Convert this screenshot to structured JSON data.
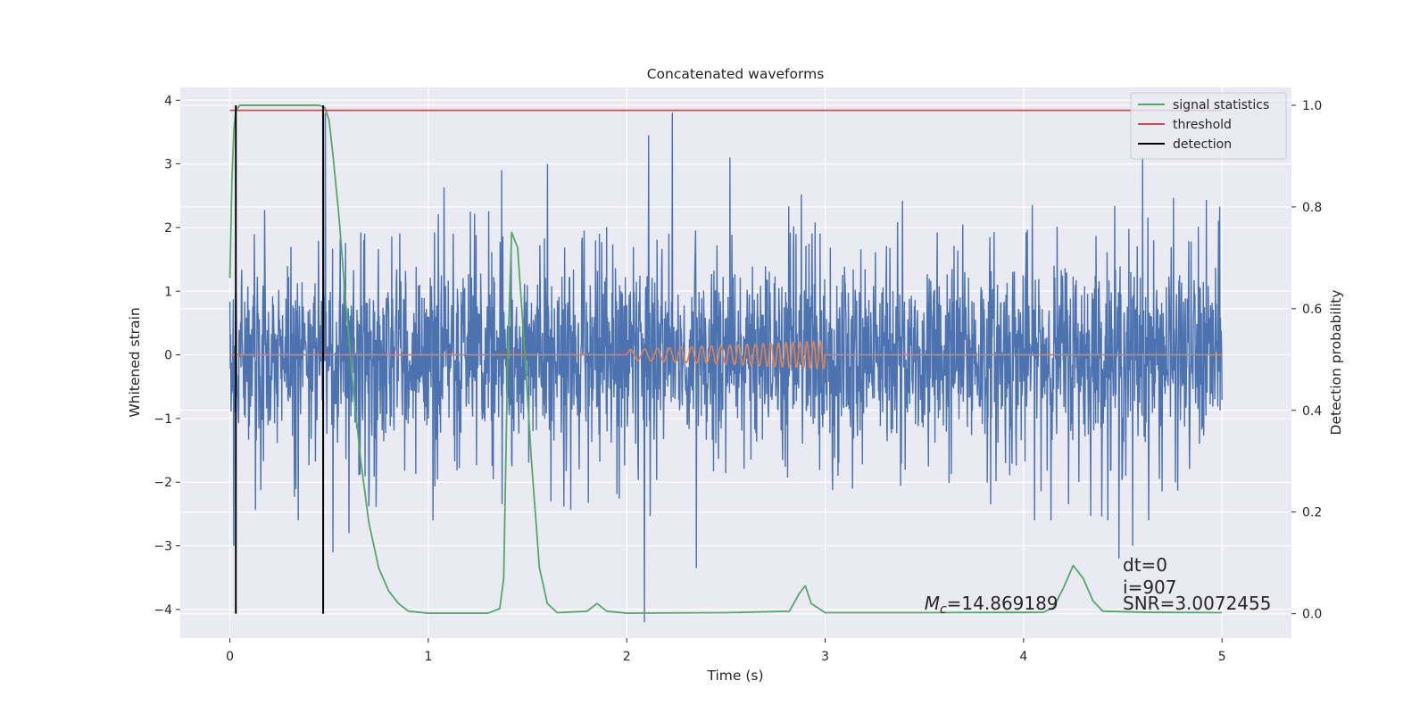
{
  "chart_data": {
    "type": "line",
    "title": "Concatenated waveforms",
    "xlabel": "Time (s)",
    "ylabel": "Whitened strain",
    "y2label": "Detection probability",
    "xlim": [
      -0.25,
      5.35
    ],
    "ylim": [
      -4.45,
      4.2
    ],
    "y2lim": [
      -0.048,
      1.035
    ],
    "xticks": [
      0,
      1,
      2,
      3,
      4,
      5
    ],
    "xtick_labels": [
      "0",
      "1",
      "2",
      "3",
      "4",
      "5"
    ],
    "yticks": [
      -4,
      -3,
      -2,
      -1,
      0,
      1,
      2,
      3,
      4
    ],
    "ytick_labels": [
      "−4",
      "−3",
      "−2",
      "−1",
      "0",
      "1",
      "2",
      "3",
      "4"
    ],
    "y2ticks": [
      0.0,
      0.2,
      0.4,
      0.6,
      0.8,
      1.0
    ],
    "y2tick_labels": [
      "0.0",
      "0.2",
      "0.4",
      "0.6",
      "0.8",
      "1.0"
    ],
    "grid": true,
    "legend_position": "top-right",
    "noise": {
      "color": "#4c72b0",
      "x_range": [
        0,
        5
      ],
      "typical_amplitude": 1.5,
      "peaks": [
        {
          "x": 0.02,
          "y": -3.0
        },
        {
          "x": 0.48,
          "y": 3.8
        },
        {
          "x": 0.52,
          "y": -3.1
        },
        {
          "x": 0.6,
          "y": -2.8
        },
        {
          "x": 1.37,
          "y": 2.9
        },
        {
          "x": 1.6,
          "y": 3.0
        },
        {
          "x": 2.09,
          "y": -4.2
        },
        {
          "x": 2.11,
          "y": 3.45
        },
        {
          "x": 2.23,
          "y": 3.8
        },
        {
          "x": 2.35,
          "y": -3.35
        },
        {
          "x": 2.52,
          "y": 3.1
        },
        {
          "x": 4.48,
          "y": -3.2
        },
        {
          "x": 4.55,
          "y": -3.0
        },
        {
          "x": 4.6,
          "y": 3.1
        }
      ]
    },
    "injected_signal": {
      "color": "#dd8452",
      "x_range": [
        2,
        3
      ],
      "amplitude_start": 0.08,
      "amplitude_end": 0.22,
      "cycles": 22
    },
    "series": [
      {
        "name": "signal statistics",
        "axis": "right",
        "color": "#55a868",
        "x": [
          0,
          0.01,
          0.02,
          0.03,
          0.05,
          0.1,
          0.2,
          0.45,
          0.48,
          0.5,
          0.52,
          0.55,
          0.58,
          0.62,
          0.66,
          0.7,
          0.75,
          0.8,
          0.85,
          0.9,
          1.0,
          1.3,
          1.36,
          1.38,
          1.4,
          1.42,
          1.45,
          1.48,
          1.52,
          1.56,
          1.6,
          1.65,
          1.8,
          1.85,
          1.9,
          2.0,
          2.5,
          2.82,
          2.87,
          2.9,
          2.93,
          3.0,
          3.5,
          4.1,
          4.15,
          4.2,
          4.25,
          4.3,
          4.35,
          4.4,
          4.6,
          5.0
        ],
        "y": [
          0.66,
          0.85,
          0.95,
          0.99,
          1.0,
          1.0,
          1.0,
          1.0,
          0.995,
          0.97,
          0.9,
          0.78,
          0.63,
          0.45,
          0.3,
          0.18,
          0.09,
          0.045,
          0.02,
          0.005,
          0.001,
          0.001,
          0.01,
          0.07,
          0.5,
          0.75,
          0.72,
          0.55,
          0.3,
          0.09,
          0.02,
          0.002,
          0.005,
          0.02,
          0.005,
          0.001,
          0.002,
          0.005,
          0.04,
          0.055,
          0.02,
          0.002,
          0.002,
          0.003,
          0.012,
          0.05,
          0.095,
          0.07,
          0.025,
          0.005,
          0.003,
          0.002
        ]
      },
      {
        "name": "threshold",
        "axis": "right",
        "color": "#c44e52",
        "x": [
          0,
          5
        ],
        "y": [
          0.99,
          0.99
        ]
      },
      {
        "name": "detection",
        "axis": "right",
        "color": "#000000",
        "x": [
          0.03,
          0.47
        ],
        "y": [
          1.0,
          1.0
        ]
      }
    ],
    "annotations": [
      {
        "x": 3.5,
        "y": -4.0,
        "symbol": "M",
        "subscript": "c",
        "text": "=14.869189"
      },
      {
        "x": 4.5,
        "y": -3.4,
        "text": "dt=0"
      },
      {
        "x": 4.5,
        "y": -3.75,
        "text": "i=907"
      },
      {
        "x": 4.5,
        "y": -4.0,
        "text": "SNR=3.0072455"
      }
    ]
  }
}
